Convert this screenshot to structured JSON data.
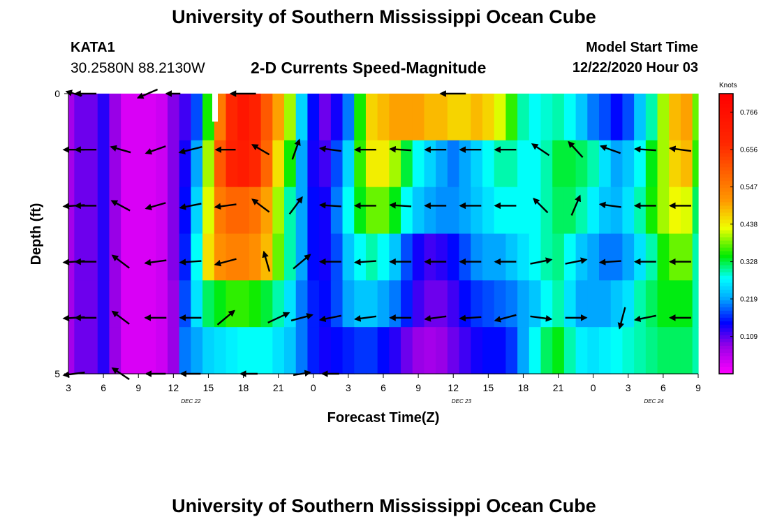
{
  "header": {
    "title": "University of Southern Mississippi Ocean Cube",
    "station_id": "KATA1",
    "coords": "30.2580N 88.2130W",
    "chart_heading": "2-D Currents Speed-Magnitude",
    "model_start_label": "Model Start Time",
    "model_start_value": "12/22/2020 Hour 03"
  },
  "footer": {
    "title": "University of Southern Mississippi Ocean Cube"
  },
  "chart_data": {
    "type": "heatmap",
    "title": "2-D Currents Speed-Magnitude",
    "xlabel": "Forecast Time(Z)",
    "ylabel": "Depth (ft)",
    "x_hours": [
      3,
      4,
      5,
      6,
      7,
      8,
      9,
      10,
      11,
      12,
      13,
      14,
      15,
      16,
      17,
      18,
      19,
      20,
      21,
      22,
      23,
      24,
      25,
      26,
      27,
      28,
      29,
      30,
      31,
      32,
      33,
      34,
      35,
      36,
      37,
      38,
      39,
      40,
      41,
      42,
      43,
      44,
      45,
      46,
      47,
      48,
      49,
      50,
      51,
      52,
      53,
      54,
      55,
      56,
      57
    ],
    "x_range": [
      3,
      57
    ],
    "x_ticks": [
      {
        "hour": 3,
        "label": "3"
      },
      {
        "hour": 6,
        "label": "6"
      },
      {
        "hour": 9,
        "label": "9"
      },
      {
        "hour": 12,
        "label": "12"
      },
      {
        "hour": 15,
        "label": "15"
      },
      {
        "hour": 18,
        "label": "18"
      },
      {
        "hour": 21,
        "label": "21"
      },
      {
        "hour": 24,
        "label": "0"
      },
      {
        "hour": 27,
        "label": "3"
      },
      {
        "hour": 30,
        "label": "6"
      },
      {
        "hour": 33,
        "label": "9"
      },
      {
        "hour": 36,
        "label": "12"
      },
      {
        "hour": 39,
        "label": "15"
      },
      {
        "hour": 42,
        "label": "18"
      },
      {
        "hour": 45,
        "label": "21"
      },
      {
        "hour": 48,
        "label": "0"
      },
      {
        "hour": 51,
        "label": "3"
      },
      {
        "hour": 54,
        "label": "6"
      },
      {
        "hour": 57,
        "label": "9"
      }
    ],
    "date_labels": [
      {
        "hour": 13.5,
        "label": "DEC 22"
      },
      {
        "hour": 36.7,
        "label": "DEC 23"
      },
      {
        "hour": 53.2,
        "label": "DEC 24"
      }
    ],
    "y_range": [
      0,
      5
    ],
    "y_ticks": [
      {
        "value": 0,
        "label": "0"
      },
      {
        "value": 5,
        "label": "5"
      }
    ],
    "depth_bins": [
      0.5,
      1.5,
      2.5,
      3.5,
      4.5
    ],
    "speed_knots": [
      [
        0.07,
        0.1,
        0.1,
        0.13,
        0.08,
        0.03,
        0.03,
        0.03,
        0.04,
        0.09,
        0.12,
        0.18,
        0.35,
        0.55,
        0.68,
        0.74,
        0.7,
        0.6,
        0.5,
        0.4,
        0.25,
        0.15,
        0.1,
        0.14,
        0.2,
        0.35,
        0.46,
        0.48,
        0.5,
        0.5,
        0.5,
        0.48,
        0.48,
        0.46,
        0.46,
        0.48,
        0.46,
        0.42,
        0.36,
        0.3,
        0.28,
        0.29,
        0.3,
        0.28,
        0.24,
        0.2,
        0.18,
        0.15,
        0.18,
        0.24,
        0.3,
        0.4,
        0.48,
        0.5,
        0.38
      ],
      [
        0.07,
        0.1,
        0.1,
        0.13,
        0.08,
        0.03,
        0.03,
        0.03,
        0.04,
        0.09,
        0.14,
        0.22,
        0.4,
        0.6,
        0.7,
        0.72,
        0.68,
        0.58,
        0.45,
        0.35,
        0.22,
        0.14,
        0.12,
        0.18,
        0.25,
        0.36,
        0.44,
        0.44,
        0.4,
        0.33,
        0.28,
        0.25,
        0.22,
        0.2,
        0.22,
        0.25,
        0.28,
        0.3,
        0.3,
        0.28,
        0.28,
        0.3,
        0.33,
        0.33,
        0.32,
        0.3,
        0.26,
        0.22,
        0.24,
        0.28,
        0.34,
        0.4,
        0.46,
        0.48,
        0.36
      ],
      [
        0.07,
        0.1,
        0.1,
        0.13,
        0.08,
        0.03,
        0.03,
        0.03,
        0.04,
        0.09,
        0.15,
        0.25,
        0.42,
        0.55,
        0.58,
        0.58,
        0.56,
        0.5,
        0.4,
        0.3,
        0.22,
        0.15,
        0.14,
        0.2,
        0.28,
        0.34,
        0.38,
        0.38,
        0.34,
        0.28,
        0.24,
        0.22,
        0.21,
        0.21,
        0.22,
        0.24,
        0.26,
        0.28,
        0.28,
        0.28,
        0.28,
        0.3,
        0.32,
        0.32,
        0.3,
        0.27,
        0.24,
        0.23,
        0.26,
        0.3,
        0.35,
        0.4,
        0.43,
        0.42,
        0.32
      ],
      [
        0.07,
        0.1,
        0.1,
        0.13,
        0.08,
        0.03,
        0.03,
        0.03,
        0.04,
        0.09,
        0.16,
        0.28,
        0.45,
        0.52,
        0.54,
        0.54,
        0.52,
        0.48,
        0.38,
        0.3,
        0.22,
        0.15,
        0.14,
        0.18,
        0.24,
        0.28,
        0.3,
        0.28,
        0.24,
        0.18,
        0.14,
        0.12,
        0.13,
        0.15,
        0.18,
        0.21,
        0.22,
        0.22,
        0.24,
        0.26,
        0.28,
        0.3,
        0.31,
        0.28,
        0.24,
        0.22,
        0.2,
        0.2,
        0.22,
        0.26,
        0.3,
        0.35,
        0.38,
        0.38,
        0.3
      ],
      [
        0.07,
        0.1,
        0.1,
        0.13,
        0.08,
        0.03,
        0.03,
        0.03,
        0.04,
        0.08,
        0.18,
        0.26,
        0.32,
        0.34,
        0.36,
        0.36,
        0.35,
        0.33,
        0.3,
        0.26,
        0.2,
        0.16,
        0.15,
        0.18,
        0.22,
        0.24,
        0.24,
        0.22,
        0.2,
        0.16,
        0.12,
        0.1,
        0.1,
        0.12,
        0.15,
        0.17,
        0.18,
        0.19,
        0.2,
        0.22,
        0.24,
        0.28,
        0.3,
        0.26,
        0.22,
        0.22,
        0.22,
        0.24,
        0.26,
        0.3,
        0.32,
        0.34,
        0.34,
        0.34,
        0.3
      ],
      [
        0.07,
        0.1,
        0.1,
        0.13,
        0.08,
        0.03,
        0.03,
        0.03,
        0.04,
        0.08,
        0.2,
        0.22,
        0.25,
        0.26,
        0.27,
        0.28,
        0.28,
        0.28,
        0.26,
        0.24,
        0.2,
        0.16,
        0.14,
        0.15,
        0.16,
        0.17,
        0.17,
        0.15,
        0.13,
        0.1,
        0.08,
        0.07,
        0.08,
        0.1,
        0.12,
        0.14,
        0.15,
        0.15,
        0.17,
        0.22,
        0.28,
        0.32,
        0.34,
        0.3,
        0.27,
        0.26,
        0.27,
        0.28,
        0.29,
        0.3,
        0.31,
        0.32,
        0.32,
        0.32,
        0.3
      ]
    ],
    "vectors": [
      {
        "t": 3.5,
        "d": 0,
        "dx": -0.55,
        "dy": -0.15
      },
      {
        "t": 4.5,
        "d": 0,
        "dx": -0.75,
        "dy": 0
      },
      {
        "t": 9.8,
        "d": 0,
        "dx": -0.7,
        "dy": 0.3
      },
      {
        "t": 12,
        "d": 0,
        "dx": -0.5,
        "dy": 0
      },
      {
        "t": 18,
        "d": 0,
        "dx": -0.9,
        "dy": 0
      },
      {
        "t": 36,
        "d": 0,
        "dx": -0.9,
        "dy": 0
      },
      {
        "t": 3.5,
        "d": 1,
        "dx": -0.75,
        "dy": 0
      },
      {
        "t": 4.5,
        "d": 1,
        "dx": -0.75,
        "dy": 0
      },
      {
        "t": 7.5,
        "d": 1,
        "dx": -0.7,
        "dy": -0.2
      },
      {
        "t": 10.5,
        "d": 1,
        "dx": -0.7,
        "dy": 0.25
      },
      {
        "t": 13.5,
        "d": 1,
        "dx": -0.8,
        "dy": 0.2
      },
      {
        "t": 16.5,
        "d": 1,
        "dx": -0.7,
        "dy": 0
      },
      {
        "t": 19.5,
        "d": 1,
        "dx": -0.6,
        "dy": -0.35
      },
      {
        "t": 22.5,
        "d": 1,
        "dx": 0.25,
        "dy": -0.7
      },
      {
        "t": 25.5,
        "d": 1,
        "dx": -0.75,
        "dy": -0.1
      },
      {
        "t": 28.5,
        "d": 1,
        "dx": -0.75,
        "dy": 0
      },
      {
        "t": 31.5,
        "d": 1,
        "dx": -0.75,
        "dy": -0.05
      },
      {
        "t": 34.5,
        "d": 1,
        "dx": -0.75,
        "dy": 0
      },
      {
        "t": 37.5,
        "d": 1,
        "dx": -0.75,
        "dy": 0
      },
      {
        "t": 40.5,
        "d": 1,
        "dx": -0.75,
        "dy": 0
      },
      {
        "t": 43.5,
        "d": 1,
        "dx": -0.6,
        "dy": -0.4
      },
      {
        "t": 46.5,
        "d": 1,
        "dx": -0.5,
        "dy": -0.55
      },
      {
        "t": 49.5,
        "d": 1,
        "dx": -0.7,
        "dy": -0.25
      },
      {
        "t": 52.5,
        "d": 1,
        "dx": -0.75,
        "dy": -0.05
      },
      {
        "t": 55.5,
        "d": 1,
        "dx": -0.75,
        "dy": -0.1
      },
      {
        "t": 3.5,
        "d": 2,
        "dx": -0.75,
        "dy": 0.05
      },
      {
        "t": 4.5,
        "d": 2,
        "dx": -0.75,
        "dy": 0
      },
      {
        "t": 7.5,
        "d": 2,
        "dx": -0.65,
        "dy": -0.35
      },
      {
        "t": 10.5,
        "d": 2,
        "dx": -0.7,
        "dy": 0.2
      },
      {
        "t": 13.5,
        "d": 2,
        "dx": -0.75,
        "dy": 0.15
      },
      {
        "t": 16.5,
        "d": 2,
        "dx": -0.75,
        "dy": 0.1
      },
      {
        "t": 19.5,
        "d": 2,
        "dx": -0.6,
        "dy": -0.45
      },
      {
        "t": 22.5,
        "d": 2,
        "dx": 0.45,
        "dy": -0.6
      },
      {
        "t": 25.5,
        "d": 2,
        "dx": -0.75,
        "dy": -0.05
      },
      {
        "t": 28.5,
        "d": 2,
        "dx": -0.75,
        "dy": 0
      },
      {
        "t": 31.5,
        "d": 2,
        "dx": -0.75,
        "dy": -0.05
      },
      {
        "t": 34.5,
        "d": 2,
        "dx": -0.75,
        "dy": 0
      },
      {
        "t": 37.5,
        "d": 2,
        "dx": -0.75,
        "dy": 0
      },
      {
        "t": 40.5,
        "d": 2,
        "dx": -0.75,
        "dy": 0
      },
      {
        "t": 43.5,
        "d": 2,
        "dx": -0.5,
        "dy": -0.5
      },
      {
        "t": 46.5,
        "d": 2,
        "dx": 0.3,
        "dy": -0.7
      },
      {
        "t": 49.5,
        "d": 2,
        "dx": -0.75,
        "dy": -0.1
      },
      {
        "t": 52.5,
        "d": 2,
        "dx": -0.75,
        "dy": 0
      },
      {
        "t": 55.5,
        "d": 2,
        "dx": -0.75,
        "dy": 0
      },
      {
        "t": 3.5,
        "d": 3,
        "dx": -0.75,
        "dy": 0.05
      },
      {
        "t": 4.5,
        "d": 3,
        "dx": -0.75,
        "dy": 0
      },
      {
        "t": 7.5,
        "d": 3,
        "dx": -0.6,
        "dy": -0.45
      },
      {
        "t": 10.5,
        "d": 3,
        "dx": -0.75,
        "dy": 0.1
      },
      {
        "t": 13.5,
        "d": 3,
        "dx": -0.75,
        "dy": 0.05
      },
      {
        "t": 16.5,
        "d": 3,
        "dx": -0.75,
        "dy": 0.2
      },
      {
        "t": 20,
        "d": 3,
        "dx": -0.2,
        "dy": -0.7
      },
      {
        "t": 23,
        "d": 3,
        "dx": 0.6,
        "dy": -0.5
      },
      {
        "t": 25.5,
        "d": 3,
        "dx": -0.75,
        "dy": 0
      },
      {
        "t": 28.5,
        "d": 3,
        "dx": -0.75,
        "dy": 0.05
      },
      {
        "t": 31.5,
        "d": 3,
        "dx": -0.75,
        "dy": 0
      },
      {
        "t": 34.5,
        "d": 3,
        "dx": -0.75,
        "dy": 0
      },
      {
        "t": 37.5,
        "d": 3,
        "dx": -0.75,
        "dy": 0
      },
      {
        "t": 40.5,
        "d": 3,
        "dx": -0.75,
        "dy": 0
      },
      {
        "t": 43.5,
        "d": 3,
        "dx": 0.75,
        "dy": -0.15
      },
      {
        "t": 46.5,
        "d": 3,
        "dx": 0.75,
        "dy": -0.15
      },
      {
        "t": 49.5,
        "d": 3,
        "dx": -0.75,
        "dy": 0.05
      },
      {
        "t": 52.5,
        "d": 3,
        "dx": -0.75,
        "dy": 0
      },
      {
        "t": 55.5,
        "d": 3,
        "dx": -0.75,
        "dy": 0
      },
      {
        "t": 3.5,
        "d": 4,
        "dx": -0.75,
        "dy": 0.05
      },
      {
        "t": 4.5,
        "d": 4,
        "dx": -0.75,
        "dy": 0
      },
      {
        "t": 7.5,
        "d": 4,
        "dx": -0.6,
        "dy": -0.45
      },
      {
        "t": 10.5,
        "d": 4,
        "dx": -0.75,
        "dy": 0
      },
      {
        "t": 13.5,
        "d": 4,
        "dx": -0.75,
        "dy": 0
      },
      {
        "t": 16.5,
        "d": 4,
        "dx": 0.6,
        "dy": -0.5
      },
      {
        "t": 21,
        "d": 4,
        "dx": 0.75,
        "dy": -0.35
      },
      {
        "t": 23,
        "d": 4,
        "dx": 0.75,
        "dy": -0.2
      },
      {
        "t": 25.5,
        "d": 4,
        "dx": -0.75,
        "dy": 0.15
      },
      {
        "t": 28.5,
        "d": 4,
        "dx": -0.75,
        "dy": 0.1
      },
      {
        "t": 31.5,
        "d": 4,
        "dx": -0.75,
        "dy": 0
      },
      {
        "t": 34.5,
        "d": 4,
        "dx": -0.75,
        "dy": 0.1
      },
      {
        "t": 37.5,
        "d": 4,
        "dx": -0.75,
        "dy": 0.05
      },
      {
        "t": 40.5,
        "d": 4,
        "dx": -0.75,
        "dy": 0.2
      },
      {
        "t": 43.5,
        "d": 4,
        "dx": 0.75,
        "dy": 0.1
      },
      {
        "t": 46.5,
        "d": 4,
        "dx": 0.75,
        "dy": 0
      },
      {
        "t": 50.5,
        "d": 4,
        "dx": -0.2,
        "dy": 0.75
      },
      {
        "t": 52.5,
        "d": 4,
        "dx": -0.75,
        "dy": 0.15
      },
      {
        "t": 55.5,
        "d": 4,
        "dx": -0.75,
        "dy": 0
      },
      {
        "t": 3.5,
        "d": 5,
        "dx": -0.75,
        "dy": 0.1
      },
      {
        "t": 7.5,
        "d": 5,
        "dx": -0.6,
        "dy": -0.4
      },
      {
        "t": 10.5,
        "d": 5,
        "dx": -0.7,
        "dy": 0
      },
      {
        "t": 13.5,
        "d": 5,
        "dx": -0.7,
        "dy": 0
      },
      {
        "t": 18.5,
        "d": 5,
        "dx": -0.6,
        "dy": 0
      },
      {
        "t": 23,
        "d": 5,
        "dx": 0.6,
        "dy": -0.1
      },
      {
        "t": 25.5,
        "d": 5,
        "dx": -0.6,
        "dy": 0
      }
    ],
    "colorbar": {
      "unit": "Knots",
      "range": [
        0,
        0.82
      ],
      "tick_values": [
        0.109,
        0.219,
        0.328,
        0.438,
        0.547,
        0.656,
        0.766
      ],
      "tick_labels": [
        "0.109",
        "0.219",
        "0.328",
        "0.438",
        "0.547",
        "0.656",
        "0.766"
      ]
    }
  }
}
